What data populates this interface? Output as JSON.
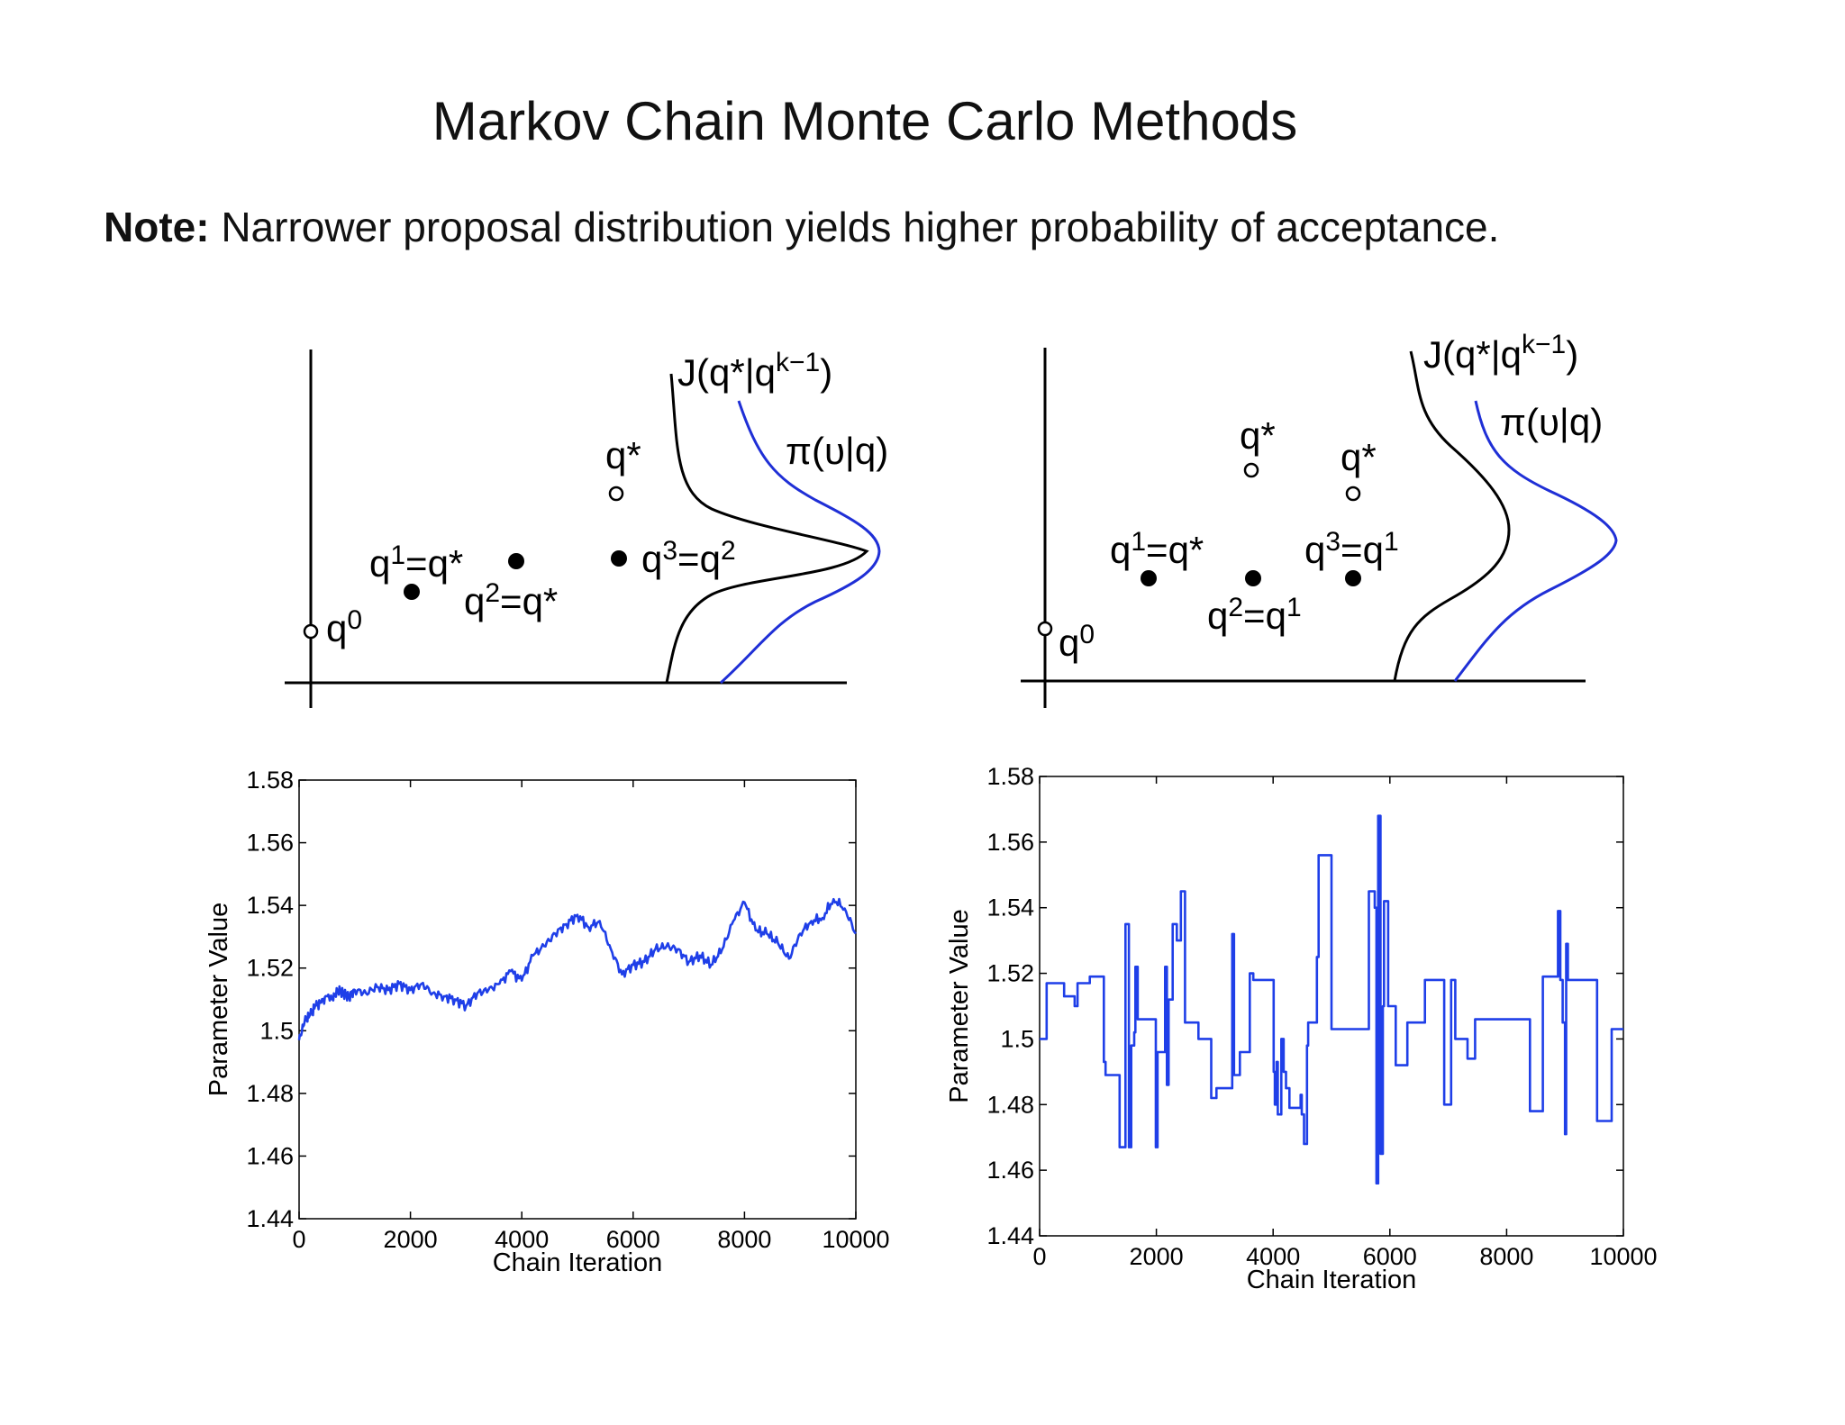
{
  "slide": {
    "title": "Markov Chain Monte Carlo Methods",
    "note_label": "Note:",
    "note_text": " Narrower proposal distribution yields higher probability of acceptance."
  },
  "diagrams": [
    {
      "labels": {
        "J": "J(q*|q",
        "J_sup": "k−1",
        "J_close": ")",
        "pi": "π(υ|q)",
        "q0": "q",
        "q0_sup": "0",
        "q1": "q",
        "q1_sup": "1",
        "q1_rhs": "=q*",
        "q2": "q",
        "q2_sup": "2",
        "q2_rhs": "=q*",
        "q3": "q",
        "q3_sup": "3",
        "q3_rhs": "=q",
        "q3_rhs_sup": "2",
        "qstar": "q*"
      },
      "colors": {
        "proposal": "#000000",
        "posterior": "#1f2fd6"
      }
    },
    {
      "labels": {
        "J": "J(q*|q",
        "J_sup": "k−1",
        "J_close": ")",
        "pi": "π(υ|q)",
        "q0": "q",
        "q0_sup": "0",
        "q1": "q",
        "q1_sup": "1",
        "q1_rhs": "=q*",
        "q2": "q",
        "q2_sup": "2",
        "q2_rhs": "=q",
        "q2_rhs_sup": "1",
        "q3": "q",
        "q3_sup": "3",
        "q3_rhs": "=q",
        "q3_rhs_sup": "1",
        "qstar_a": "q*",
        "qstar_b": "q*"
      },
      "colors": {
        "proposal": "#000000",
        "posterior": "#1f2fd6"
      }
    }
  ],
  "chart_data": [
    {
      "type": "line",
      "title": "",
      "xlabel": "Chain Iteration",
      "ylabel": "Parameter Value",
      "xlim": [
        0,
        10000
      ],
      "ylim": [
        1.44,
        1.58
      ],
      "xticks": [
        0,
        2000,
        4000,
        6000,
        8000,
        10000
      ],
      "yticks": [
        1.44,
        1.46,
        1.48,
        1.5,
        1.52,
        1.54,
        1.56,
        1.58
      ],
      "ytick_labels": [
        "1.44",
        "1.46",
        "1.48",
        "1.5",
        "1.52",
        "1.54",
        "1.56",
        "1.58"
      ],
      "grid": false,
      "color": "#1f3fe8",
      "series": [
        {
          "x": [
            0,
            100,
            200,
            300,
            400,
            500,
            600,
            700,
            800,
            900,
            1000,
            1200,
            1400,
            1600,
            1800,
            2000,
            2200,
            2400,
            2600,
            2800,
            3000,
            3200,
            3400,
            3600,
            3800,
            4000,
            4200,
            4400,
            4600,
            4800,
            5000,
            5200,
            5400,
            5600,
            5800,
            6000,
            6200,
            6400,
            6600,
            6800,
            7000,
            7200,
            7400,
            7600,
            7800,
            8000,
            8200,
            8400,
            8600,
            8800,
            9000,
            9200,
            9400,
            9600,
            9800,
            10000
          ],
          "y": [
            1.497,
            1.503,
            1.505,
            1.508,
            1.509,
            1.511,
            1.51,
            1.513,
            1.512,
            1.511,
            1.513,
            1.512,
            1.514,
            1.513,
            1.515,
            1.513,
            1.515,
            1.512,
            1.511,
            1.51,
            1.508,
            1.512,
            1.513,
            1.515,
            1.519,
            1.516,
            1.524,
            1.527,
            1.531,
            1.534,
            1.537,
            1.533,
            1.535,
            1.526,
            1.518,
            1.521,
            1.522,
            1.526,
            1.527,
            1.526,
            1.522,
            1.524,
            1.521,
            1.526,
            1.535,
            1.541,
            1.532,
            1.531,
            1.528,
            1.523,
            1.531,
            1.535,
            1.536,
            1.542,
            1.539,
            1.531
          ]
        }
      ]
    },
    {
      "type": "line",
      "title": "",
      "xlabel": "Chain Iteration",
      "ylabel": "Parameter Value",
      "xlim": [
        0,
        10000
      ],
      "ylim": [
        1.44,
        1.58
      ],
      "xticks": [
        0,
        2000,
        4000,
        6000,
        8000,
        10000
      ],
      "yticks": [
        1.44,
        1.46,
        1.48,
        1.5,
        1.52,
        1.54,
        1.56,
        1.58
      ],
      "ytick_labels": [
        "1.44",
        "1.46",
        "1.48",
        "1.5",
        "1.52",
        "1.54",
        "1.56",
        "1.58"
      ],
      "grid": false,
      "color": "#1f3fe8",
      "series": [
        {
          "step": true,
          "x": [
            0,
            120,
            420,
            590,
            600,
            650,
            860,
            1100,
            1130,
            1250,
            1330,
            1370,
            1460,
            1470,
            1530,
            1570,
            1620,
            1640,
            1680,
            1730,
            1970,
            1990,
            2020,
            2150,
            2180,
            2210,
            2280,
            2300,
            2350,
            2420,
            2490,
            2550,
            2680,
            2720,
            2790,
            2940,
            3030,
            3100,
            3300,
            3330,
            3430,
            3590,
            3600,
            3660,
            3800,
            4010,
            4030,
            4060,
            4080,
            4140,
            4180,
            4220,
            4280,
            4470,
            4490,
            4530,
            4580,
            4600,
            4750,
            4780,
            5000,
            5130,
            5450,
            5640,
            5740,
            5770,
            5800,
            5840,
            5880,
            5900,
            5970,
            6050,
            6100,
            6300,
            6600,
            6930,
            7050,
            7120,
            7160,
            7250,
            7330,
            7380,
            7460,
            7550,
            8400,
            8620,
            8670,
            8880,
            8920,
            8960,
            9000,
            9020,
            9050,
            9350,
            9550,
            9670,
            9800,
            10000
          ],
          "y": [
            1.5,
            1.517,
            1.513,
            1.513,
            1.51,
            1.517,
            1.519,
            1.493,
            1.489,
            1.489,
            1.489,
            1.467,
            1.467,
            1.535,
            1.467,
            1.498,
            1.502,
            1.522,
            1.506,
            1.506,
            1.506,
            1.467,
            1.496,
            1.522,
            1.486,
            1.512,
            1.535,
            1.535,
            1.53,
            1.545,
            1.505,
            1.505,
            1.505,
            1.5,
            1.5,
            1.482,
            1.485,
            1.485,
            1.532,
            1.489,
            1.496,
            1.496,
            1.52,
            1.518,
            1.518,
            1.49,
            1.48,
            1.493,
            1.477,
            1.5,
            1.49,
            1.485,
            1.479,
            1.483,
            1.477,
            1.468,
            1.498,
            1.505,
            1.525,
            1.556,
            1.503,
            1.503,
            1.503,
            1.545,
            1.54,
            1.456,
            1.568,
            1.465,
            1.51,
            1.542,
            1.51,
            1.51,
            1.492,
            1.505,
            1.518,
            1.48,
            1.518,
            1.5,
            1.5,
            1.5,
            1.494,
            1.494,
            1.506,
            1.506,
            1.478,
            1.519,
            1.519,
            1.539,
            1.518,
            1.505,
            1.471,
            1.529,
            1.518,
            1.518,
            1.475,
            1.475,
            1.503,
            1.503
          ]
        }
      ]
    }
  ]
}
